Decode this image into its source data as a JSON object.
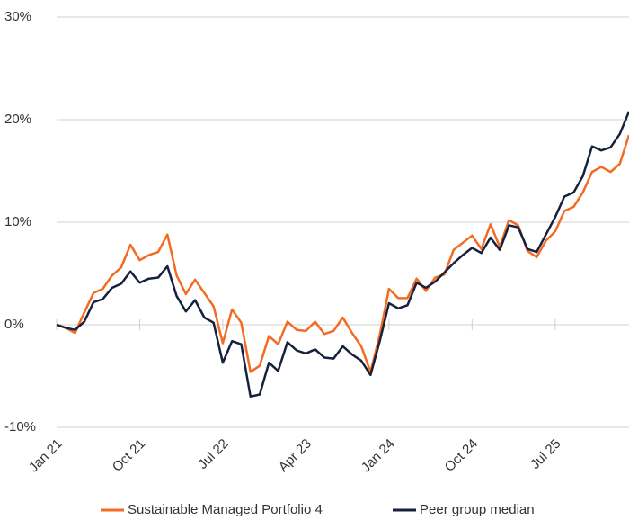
{
  "chart_data": {
    "type": "line",
    "categories": [
      "Jan 21",
      null,
      null,
      null,
      null,
      null,
      null,
      null,
      null,
      "Oct 21",
      null,
      null,
      null,
      null,
      null,
      null,
      null,
      null,
      "Jul 22",
      null,
      null,
      null,
      null,
      null,
      null,
      null,
      null,
      "Apr 23",
      null,
      null,
      null,
      null,
      null,
      null,
      null,
      null,
      "Jan 24",
      null,
      null,
      null,
      null,
      null,
      null,
      null,
      null,
      "Oct 24",
      null,
      null,
      null,
      null,
      null,
      null,
      null,
      null,
      "Jul 25",
      null,
      null,
      null,
      null,
      null,
      null,
      null,
      null
    ],
    "series": [
      {
        "name": "Sustainable Managed Portfolio 4",
        "color": "#f26b21",
        "values": [
          0,
          -0.3,
          -0.8,
          1.2,
          3.1,
          3.5,
          4.8,
          5.6,
          7.8,
          6.3,
          6.8,
          7.1,
          8.8,
          4.8,
          3.0,
          4.4,
          3.1,
          1.8,
          -1.8,
          1.5,
          0.2,
          -4.6,
          -4.0,
          -1.1,
          -1.9,
          0.3,
          -0.5,
          -0.6,
          0.3,
          -0.9,
          -0.6,
          0.7,
          -0.8,
          -2.1,
          -4.6,
          -1.0,
          3.5,
          2.6,
          2.6,
          4.5,
          3.3,
          4.6,
          4.9,
          7.3,
          8.0,
          8.7,
          7.4,
          9.8,
          7.6,
          10.2,
          9.7,
          7.2,
          6.6,
          8.2,
          9.1,
          11.1,
          11.5,
          12.9,
          14.9,
          15.4,
          14.9,
          15.7,
          18.5
        ]
      },
      {
        "name": "Peer group median",
        "color": "#16213d",
        "values": [
          0,
          -0.3,
          -0.5,
          0.3,
          2.2,
          2.5,
          3.6,
          4.0,
          5.2,
          4.1,
          4.5,
          4.6,
          5.7,
          2.8,
          1.3,
          2.4,
          0.7,
          0.2,
          -3.7,
          -1.6,
          -1.9,
          -7.0,
          -6.8,
          -3.7,
          -4.5,
          -1.7,
          -2.5,
          -2.8,
          -2.4,
          -3.2,
          -3.3,
          -2.1,
          -2.9,
          -3.5,
          -4.9,
          -1.6,
          2.1,
          1.6,
          1.9,
          4.1,
          3.6,
          4.2,
          5.1,
          6.0,
          6.8,
          7.5,
          7.0,
          8.5,
          7.3,
          9.7,
          9.5,
          7.4,
          7.1,
          8.8,
          10.5,
          12.5,
          12.9,
          14.5,
          17.4,
          17.0,
          17.3,
          18.6,
          20.8
        ]
      }
    ],
    "ylim": [
      -10,
      30
    ],
    "yticks": [
      {
        "value": -10,
        "label": "-10%"
      },
      {
        "value": 0,
        "label": "0%"
      },
      {
        "value": 10,
        "label": "10%"
      },
      {
        "value": 20,
        "label": "20%"
      },
      {
        "value": 30,
        "label": "30%"
      }
    ],
    "grid": true,
    "legend": "bottom"
  }
}
